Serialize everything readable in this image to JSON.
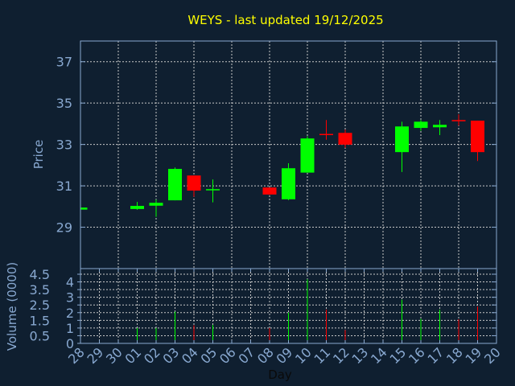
{
  "chart_data": [
    {
      "type": "candlestick",
      "title": "WEYS - last updated 19/12/2025",
      "ylabel": "Price",
      "ylim": [
        27,
        38
      ],
      "yticks": [
        "29",
        "31",
        "33",
        "35",
        "37"
      ],
      "grid": true,
      "colors": {
        "up": "#00ff00",
        "down": "#ff0000",
        "background": "#0f1f30",
        "axis": "#88a8d0",
        "title": "#ffff00"
      },
      "x_ticks": [
        "28",
        "29",
        "30",
        "01",
        "02",
        "03",
        "04",
        "05",
        "06",
        "07",
        "08",
        "09",
        "10",
        "11",
        "12",
        "13",
        "14",
        "15",
        "16",
        "17",
        "18",
        "19",
        "20"
      ],
      "candles": [
        {
          "day": "28",
          "open": 29.85,
          "high": 29.95,
          "low": 29.85,
          "close": 29.95
        },
        {
          "day": "01",
          "open": 29.88,
          "high": 30.22,
          "low": 29.84,
          "close": 30.03
        },
        {
          "day": "02",
          "open": 30.04,
          "high": 30.34,
          "low": 29.5,
          "close": 30.18
        },
        {
          "day": "03",
          "open": 30.3,
          "high": 31.89,
          "low": 30.3,
          "close": 31.82
        },
        {
          "day": "04",
          "open": 31.5,
          "high": 31.5,
          "low": 30.47,
          "close": 30.77
        },
        {
          "day": "05",
          "open": 30.79,
          "high": 31.31,
          "low": 30.2,
          "close": 30.84
        },
        {
          "day": "08",
          "open": 30.92,
          "high": 30.92,
          "low": 30.56,
          "close": 30.58
        },
        {
          "day": "09",
          "open": 30.35,
          "high": 32.09,
          "low": 30.31,
          "close": 31.85
        },
        {
          "day": "10",
          "open": 31.64,
          "high": 33.4,
          "low": 31.64,
          "close": 33.29
        },
        {
          "day": "11",
          "open": 33.51,
          "high": 34.18,
          "low": 33.23,
          "close": 33.46
        },
        {
          "day": "12",
          "open": 33.56,
          "high": 33.72,
          "low": 32.84,
          "close": 32.99
        },
        {
          "day": "15",
          "open": 32.63,
          "high": 34.1,
          "low": 31.67,
          "close": 33.87
        },
        {
          "day": "16",
          "open": 33.8,
          "high": 34.18,
          "low": 33.66,
          "close": 34.1
        },
        {
          "day": "17",
          "open": 33.83,
          "high": 34.18,
          "low": 33.45,
          "close": 33.95
        },
        {
          "day": "18",
          "open": 34.18,
          "high": 34.46,
          "low": 33.91,
          "close": 34.12
        },
        {
          "day": "19",
          "open": 34.15,
          "high": 34.15,
          "low": 32.2,
          "close": 32.63
        }
      ]
    },
    {
      "type": "bar",
      "ylabel": "Volume (0000)",
      "xlabel": "Day",
      "ylim": [
        0,
        4.5
      ],
      "yticks": [
        "0",
        "0.5",
        "1",
        "1.5",
        "2",
        "2.5",
        "3",
        "3.5",
        "4",
        "4.5"
      ],
      "grid": true,
      "categories": [
        "01",
        "02",
        "03",
        "04",
        "05",
        "08",
        "09",
        "10",
        "11",
        "12",
        "15",
        "16",
        "17",
        "18",
        "19"
      ],
      "values": [
        1.0,
        1.0,
        2.06,
        1.18,
        1.2,
        1.0,
        2.0,
        4.17,
        2.2,
        0.87,
        2.84,
        1.6,
        2.2,
        1.57,
        2.4
      ],
      "directions": [
        "up",
        "up",
        "up",
        "down",
        "up",
        "down",
        "up",
        "up",
        "down",
        "down",
        "up",
        "up",
        "up",
        "down",
        "down"
      ]
    }
  ]
}
